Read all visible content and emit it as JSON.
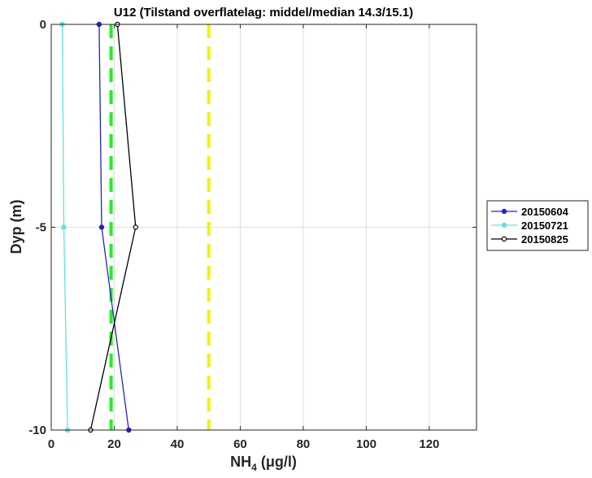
{
  "chart_data": {
    "type": "line",
    "title": "U12 (Tilstand overflatelag: middel/median 14.3/15.1)",
    "xlabel_main": "NH",
    "xlabel_sub": "4",
    "xlabel_unit": " (μg/l)",
    "ylabel": "Dyp (m)",
    "xlim": [
      0,
      135
    ],
    "ylim": [
      -10,
      0
    ],
    "x_ticks": [
      0,
      20,
      40,
      60,
      80,
      100,
      120
    ],
    "x_tick_labels": [
      "0",
      "20",
      "40",
      "60",
      "80",
      "100",
      "120"
    ],
    "y_ticks": [
      0,
      -5,
      -10
    ],
    "y_tick_labels": [
      "0",
      "-5",
      "-10"
    ],
    "grid": true,
    "legend_position": "outside-right",
    "series": [
      {
        "name": "20150604",
        "color": "#2222cc",
        "marker": "filled-circle",
        "points": [
          [
            15.2,
            0
          ],
          [
            16,
            -5
          ],
          [
            24.6,
            -10
          ]
        ]
      },
      {
        "name": "20150721",
        "color": "#5fe3e3",
        "marker": "filled-circle",
        "points": [
          [
            3.5,
            0
          ],
          [
            4,
            -5
          ],
          [
            5.2,
            -10
          ]
        ]
      },
      {
        "name": "20150825",
        "color": "#000000",
        "marker": "open-circle",
        "points": [
          [
            21,
            0
          ],
          [
            26.8,
            -5
          ],
          [
            12.5,
            -10
          ]
        ]
      }
    ],
    "reference_lines": [
      {
        "x": 19,
        "color": "#22ee22",
        "style": "dashed"
      },
      {
        "x": 50,
        "color": "#f2f200",
        "style": "dashed"
      }
    ]
  }
}
